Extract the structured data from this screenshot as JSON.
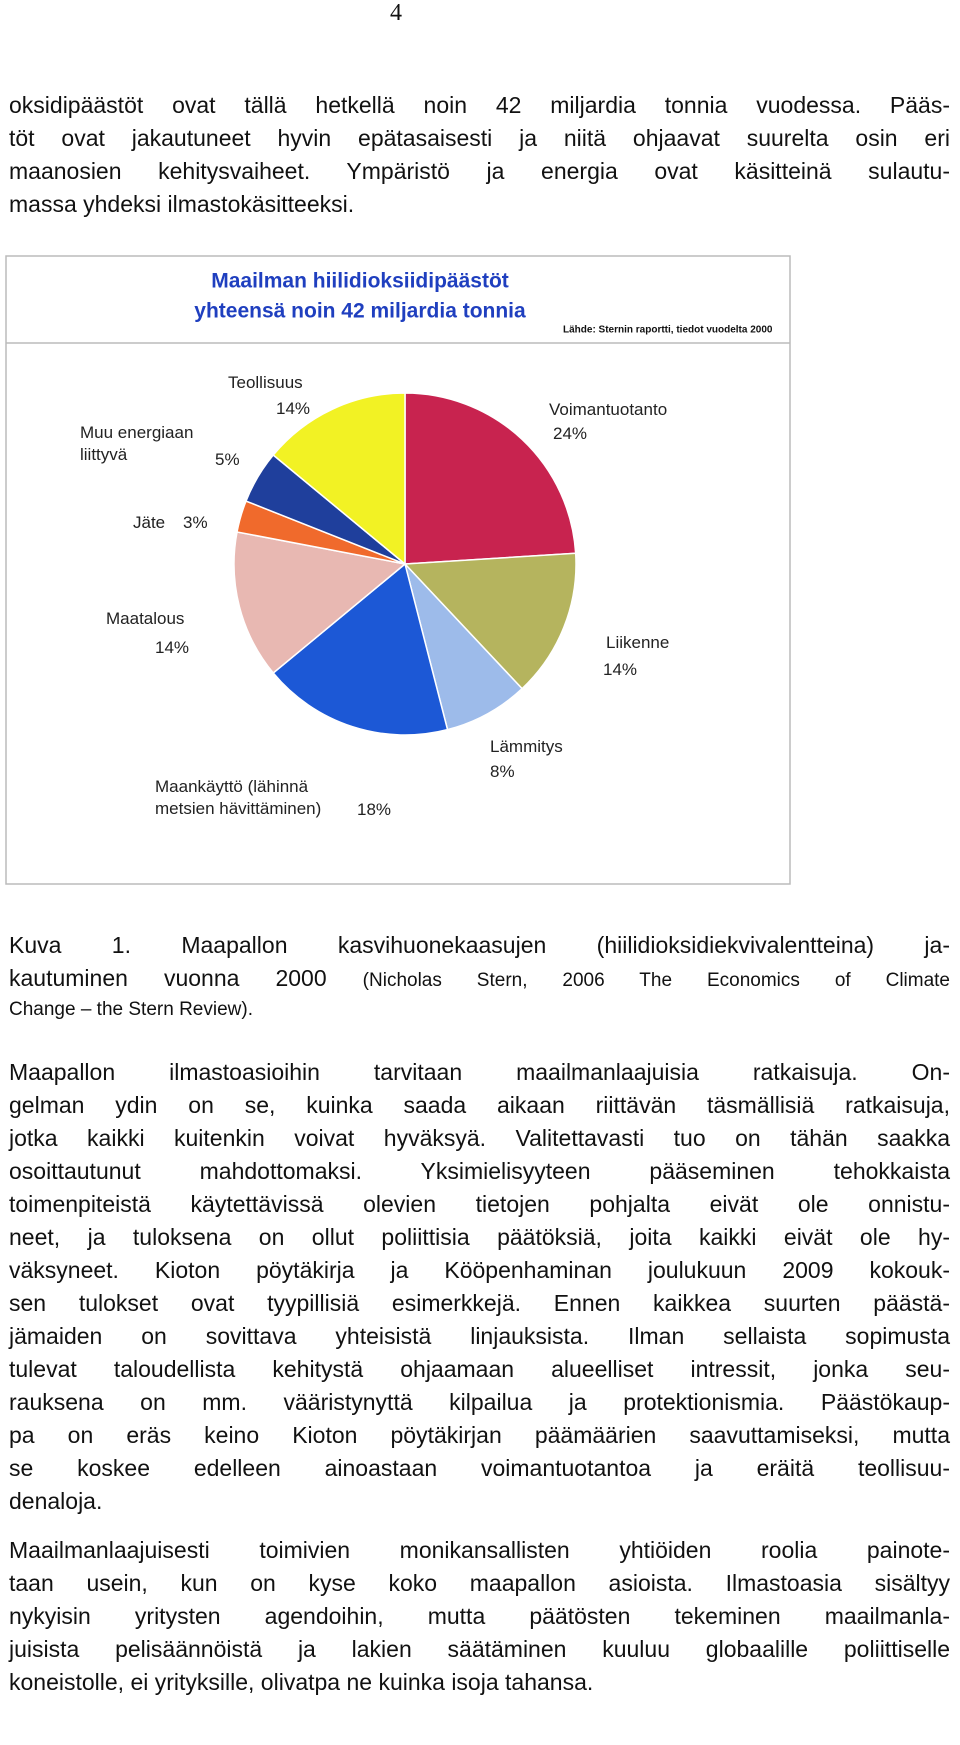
{
  "page_number": "4",
  "intro_lines": [
    "oksidipäästöt ovat tällä hetkellä noin 42 miljardia tonnia vuodessa. Pääs-",
    "töt ovat jakautuneet hyvin epätasaisesti ja niitä ohjaavat suurelta osin eri",
    "maanosien kehitysvaiheet. Ympäristö ja energia ovat käsitteinä sulautu-",
    "massa yhdeksi ilmastokäsitteeksi."
  ],
  "chart_data": {
    "type": "pie",
    "title": "Maailman hiilidioksiidipäästöt",
    "subtitle": "yhteensä noin 42 miljardia tonnia",
    "source": "Lähde: Sternin raportti, tiedot vuodelta 2000",
    "categories": [
      "Voimantuotanto",
      "Liikenne",
      "Lämmitys",
      "Maankäyttö (lähinnä\nmetsien hävittäminen)",
      "Maatalous",
      "Jäte",
      "Muu energiaan\nliittyvä",
      "Teollisuus"
    ],
    "values": [
      24,
      14,
      8,
      18,
      14,
      3,
      5,
      14
    ],
    "value_labels": [
      "24%",
      "14%",
      "8%",
      "18%",
      "14%",
      "3%",
      "5%",
      "14%"
    ],
    "colors": [
      "#c8234f",
      "#b5b45e",
      "#9dbbea",
      "#1c58d6",
      "#e8b8b2",
      "#f06a2c",
      "#1f3f9c",
      "#f2f224"
    ]
  },
  "caption": {
    "line1": "Kuva 1. Maapallon kasvihuonekaasujen (hiilidioksidiekvivalentteina) ja-",
    "line2": "kautuminen vuonna 2000",
    "source_line1": "(Nicholas Stern, 2006 The Economics of Climate",
    "source_line2": "Change – the Stern Review)."
  },
  "body_paragraphs": [
    [
      "Maapallon ilmastoasioihin tarvitaan maailmanlaajuisia ratkaisuja. On-",
      "gelman ydin on se,  kuinka saada aikaan riittävän täsmällisiä ratkaisuja,",
      "jotka kaikki kuitenkin voivat hyväksyä. Valitettavasti tuo on tähän saakka",
      "osoittautunut mahdottomaksi. Yksimielisyyteen pääseminen tehokkaista",
      "toimenpiteistä käytettävissä olevien tietojen pohjalta eivät ole onnistu-",
      "neet, ja tuloksena on ollut poliittisia päätöksiä, joita kaikki eivät ole hy-",
      "väksyneet. Kioton pöytäkirja ja Kööpenhaminan joulukuun 2009 kokouk-",
      "sen tulokset ovat tyypillisiä esimerkkejä. Ennen kaikkea suurten päästä-",
      "jämaiden on sovittava yhteisistä linjauksista. Ilman sellaista sopimusta",
      "tulevat taloudellista kehitystä ohjaamaan alueelliset intressit, jonka seu-",
      "rauksena on mm. vääristynyttä kilpailua ja protektionismia. Päästökaup-",
      "pa on eräs keino Kioton pöytäkirjan päämäärien saavuttamiseksi, mutta",
      "se koskee edelleen ainoastaan voimantuotantoa ja eräitä teollisuu-",
      "denaloja."
    ],
    [
      "Maailmanlaajuisesti toimivien monikansallisten yhtiöiden roolia painote-",
      "taan usein, kun on kyse koko maapallon asioista. Ilmastoasia sisältyy",
      "nykyisin yritysten agendoihin, mutta päätösten tekeminen maailmanla-",
      "juisista pelisäännöistä ja lakien säätäminen kuuluu globaalille poliittiselle",
      "koneistolle, ei yrityksille, olivatpa ne kuinka isoja tahansa."
    ]
  ]
}
